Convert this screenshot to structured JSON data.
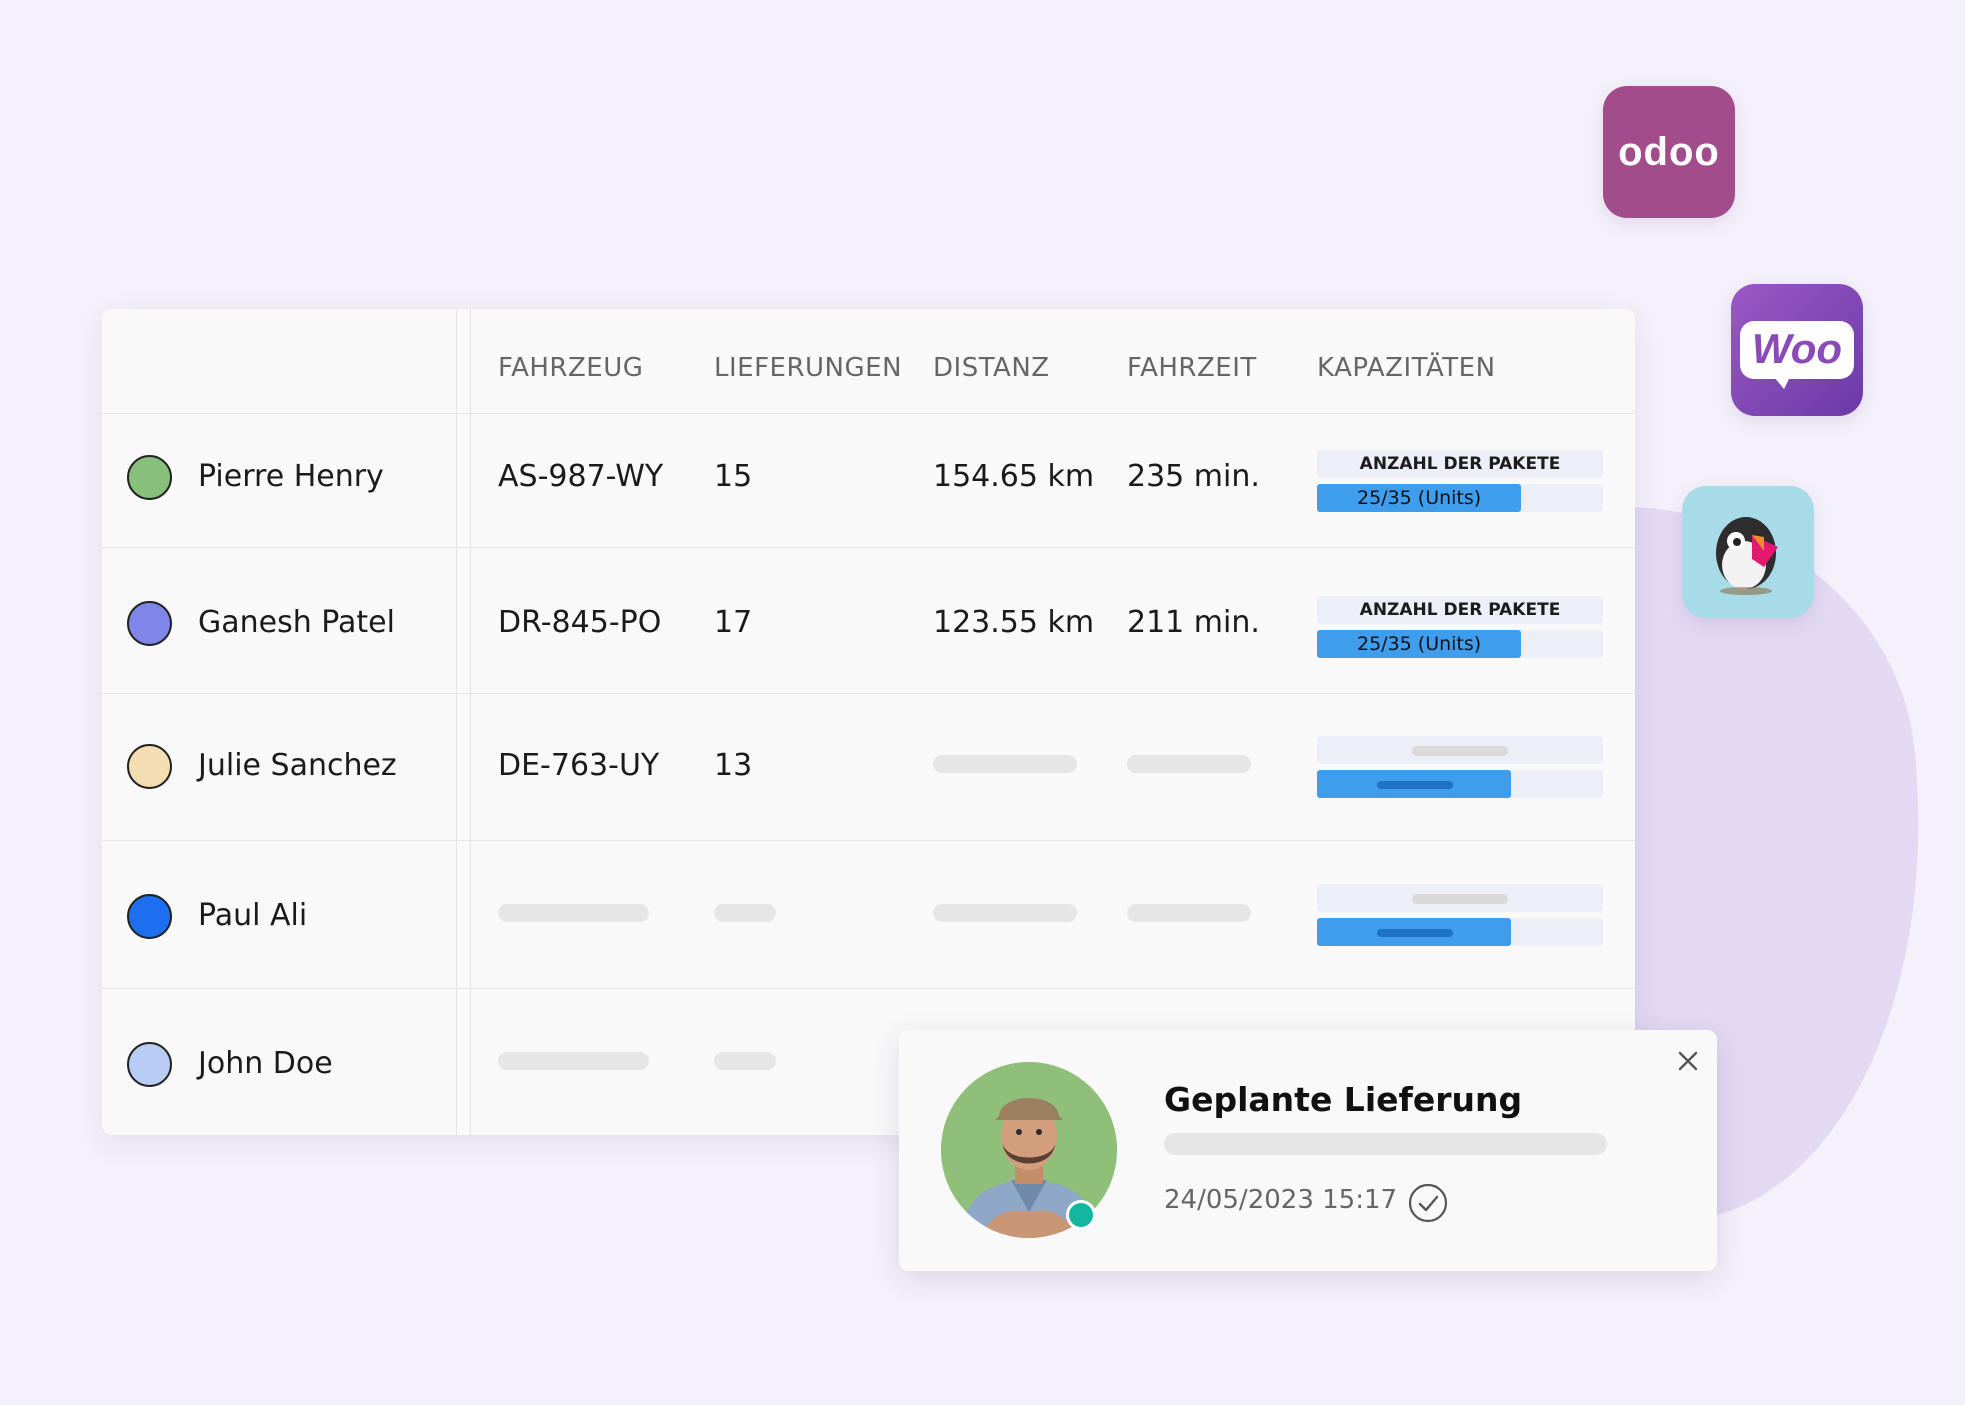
{
  "header": {
    "columns": [
      "FAHRZEUG",
      "LIEFERUNGEN",
      "DISTANZ",
      "FAHRZEIT",
      "KAPAZITÄTEN"
    ]
  },
  "rows": [
    {
      "name": "Pierre Henry",
      "color": "#86c07a",
      "vehicle": "AS-987-WY",
      "deliveries": "15",
      "distance": "154.65 km",
      "time": "235 min.",
      "capacity_label": "ANZAHL DER PAKETE",
      "capacity_value": "25/35 (Units)",
      "capacity_fraction": 0.714
    },
    {
      "name": "Ganesh Patel",
      "color": "#7f86ea",
      "vehicle": "DR-845-PO",
      "deliveries": "17",
      "distance": "123.55 km",
      "time": "211 min.",
      "capacity_label": "ANZAHL DER PAKETE",
      "capacity_value": "25/35 (Units)",
      "capacity_fraction": 0.714
    },
    {
      "name": "Julie Sanchez",
      "color": "#f4ddb3",
      "vehicle": "DE-763-UY",
      "deliveries": "13"
    },
    {
      "name": "Paul Ali",
      "color": "#1d6ff0"
    },
    {
      "name": "John Doe",
      "color": "#b7cdf5"
    }
  ],
  "logos": [
    "odoo",
    "Woo"
  ],
  "popup": {
    "title": "Geplante Lieferung",
    "datetime": "24/05/2023 15:17"
  },
  "colors": {
    "background": "#f4f1fa",
    "capacity_bar": "#3e9ded",
    "status_online": "#13b79f",
    "odoo_brand": "#a24c8c",
    "woo_brand": "#7f54b3"
  }
}
